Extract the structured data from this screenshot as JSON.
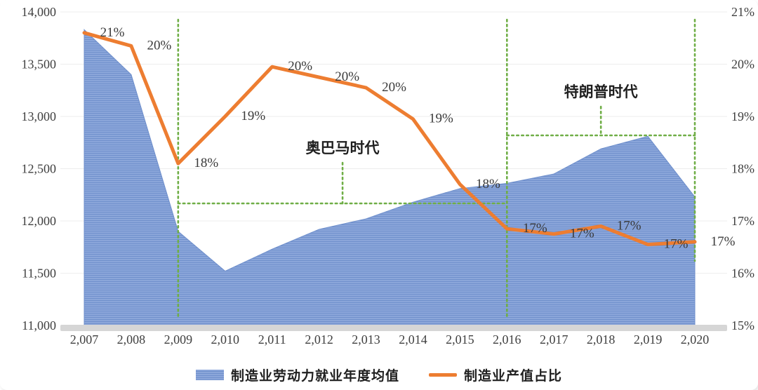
{
  "chart_data": {
    "type": "combo",
    "title": "",
    "categories": [
      "2,007",
      "2,008",
      "2,009",
      "2,010",
      "2,011",
      "2,012",
      "2,013",
      "2,014",
      "2,015",
      "2,016",
      "2,017",
      "2,018",
      "2,019",
      "2,020"
    ],
    "series": [
      {
        "name": "制造业劳动力就业年度均值",
        "type": "area",
        "axis": "left",
        "values": [
          13830,
          13400,
          11900,
          11520,
          11730,
          11920,
          12020,
          12180,
          12310,
          12360,
          12450,
          12690,
          12810,
          12230
        ]
      },
      {
        "name": "制造业产值占比",
        "type": "line",
        "axis": "right",
        "values": [
          20.6,
          20.35,
          18.1,
          19.0,
          19.95,
          19.75,
          19.55,
          18.95,
          17.7,
          16.85,
          16.75,
          16.9,
          16.55,
          16.6
        ],
        "labels": [
          "21%",
          "20%",
          "18%",
          "19%",
          "20%",
          "20%",
          "20%",
          "19%",
          "18%",
          "17%",
          "17%",
          "17%",
          "17%",
          "17%"
        ]
      }
    ],
    "left_axis": {
      "min": 11000,
      "max": 14000,
      "ticks": [
        "14,000",
        "13,500",
        "13,000",
        "12,500",
        "12,000",
        "11,500",
        "11,000"
      ]
    },
    "right_axis": {
      "min": 15,
      "max": 21,
      "ticks": [
        "21%",
        "20%",
        "19%",
        "18%",
        "17%",
        "16%",
        "15%"
      ]
    },
    "annotations": [
      {
        "label": "奥巴马时代",
        "from_index": 2,
        "to_index": 9
      },
      {
        "label": "特朗普时代",
        "from_index": 9,
        "to_index": 13
      }
    ],
    "vertical_guide_indices": [
      2,
      9,
      13
    ],
    "legend_position": "bottom",
    "grid": "light-horizontal",
    "colors": {
      "area": "#8ba6da",
      "area_stripe": "#7090cc",
      "line": "#ED7D31",
      "annotation": "#6fae46",
      "baseline_bar": "#d6d6d6",
      "text": "#3f3f3f"
    }
  },
  "legend": {
    "items": [
      {
        "label": "制造业劳动力就业年度均值",
        "swatch": "area"
      },
      {
        "label": "制造业产值占比",
        "swatch": "line"
      }
    ]
  }
}
